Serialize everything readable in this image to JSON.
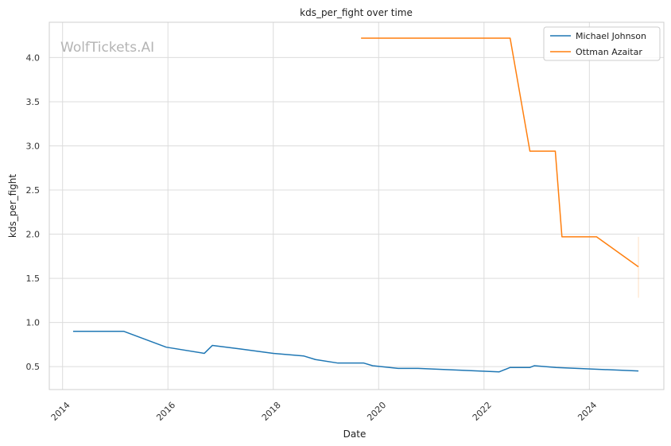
{
  "chart_data": {
    "type": "line",
    "title": "kds_per_fight over time",
    "xlabel": "Date",
    "ylabel": "kds_per_fight",
    "watermark": "WolfTickets.AI",
    "x_ticks": [
      "2014",
      "2016",
      "2018",
      "2020",
      "2022",
      "2024"
    ],
    "y_ticks": [
      "0.5",
      "1.0",
      "1.5",
      "2.0",
      "2.5",
      "3.0",
      "3.5",
      "4.0"
    ],
    "xlim": [
      "2013-10-01",
      "2025-06-01"
    ],
    "ylim": [
      0.24,
      4.4
    ],
    "grid": true,
    "legend_position": "top-right",
    "series": [
      {
        "name": "Michael Johnson",
        "color": "#1f77b4",
        "points": [
          {
            "x": "2014-03-15",
            "y": 0.9
          },
          {
            "x": "2015-02-28",
            "y": 0.9
          },
          {
            "x": "2015-12-20",
            "y": 0.72
          },
          {
            "x": "2016-09-10",
            "y": 0.65
          },
          {
            "x": "2016-11-05",
            "y": 0.74
          },
          {
            "x": "2017-05-15",
            "y": 0.7
          },
          {
            "x": "2018-01-01",
            "y": 0.65
          },
          {
            "x": "2018-08-01",
            "y": 0.62
          },
          {
            "x": "2018-10-20",
            "y": 0.58
          },
          {
            "x": "2019-03-25",
            "y": 0.54
          },
          {
            "x": "2019-09-20",
            "y": 0.54
          },
          {
            "x": "2019-11-20",
            "y": 0.51
          },
          {
            "x": "2020-05-15",
            "y": 0.48
          },
          {
            "x": "2020-10-01",
            "y": 0.48
          },
          {
            "x": "2022-04-15",
            "y": 0.44
          },
          {
            "x": "2022-07-01",
            "y": 0.49
          },
          {
            "x": "2022-11-15",
            "y": 0.49
          },
          {
            "x": "2022-12-15",
            "y": 0.51
          },
          {
            "x": "2023-05-15",
            "y": 0.49
          },
          {
            "x": "2024-12-07",
            "y": 0.45
          }
        ]
      },
      {
        "name": "Ottman Azaitar",
        "color": "#ff7f0e",
        "points": [
          {
            "x": "2019-09-01",
            "y": 4.22
          },
          {
            "x": "2022-07-01",
            "y": 4.22
          },
          {
            "x": "2022-11-15",
            "y": 2.94
          },
          {
            "x": "2023-05-10",
            "y": 2.94
          },
          {
            "x": "2023-06-25",
            "y": 1.97
          },
          {
            "x": "2024-02-20",
            "y": 1.97
          },
          {
            "x": "2024-12-07",
            "y": 1.63
          }
        ],
        "error_band": {
          "x": "2024-12-07",
          "low": 1.28,
          "high": 1.97
        }
      }
    ]
  }
}
